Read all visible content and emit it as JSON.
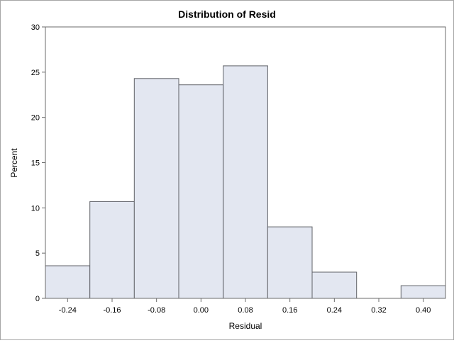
{
  "chart_data": {
    "type": "bar",
    "title": "Distribution of Resid",
    "xlabel": "Residual",
    "ylabel": "Percent",
    "bin_width": 0.08,
    "x_ticks": [
      -0.24,
      -0.16,
      -0.08,
      0.0,
      0.08,
      0.16,
      0.24,
      0.32,
      0.4
    ],
    "x_tick_labels": [
      "-0.24",
      "-0.16",
      "-0.08",
      "0.00",
      "0.08",
      "0.16",
      "0.24",
      "0.32",
      "0.40"
    ],
    "xlim": [
      -0.28,
      0.44
    ],
    "ylim": [
      0,
      30
    ],
    "y_ticks": [
      0,
      5,
      10,
      15,
      20,
      25,
      30
    ],
    "y_tick_labels": [
      "0",
      "5",
      "10",
      "15",
      "20",
      "25",
      "30"
    ],
    "categories": [
      "-0.24",
      "-0.16",
      "-0.08",
      "0.00",
      "0.08",
      "0.16",
      "0.24",
      "0.32",
      "0.40"
    ],
    "values": [
      3.6,
      10.7,
      24.3,
      23.6,
      25.7,
      7.9,
      2.9,
      0,
      1.4
    ],
    "grid": false,
    "legend": "none",
    "colors": {
      "bar_fill": "#e3e7f1",
      "bar_edge": "#5f6167",
      "axis": "#6b6b6b"
    }
  }
}
